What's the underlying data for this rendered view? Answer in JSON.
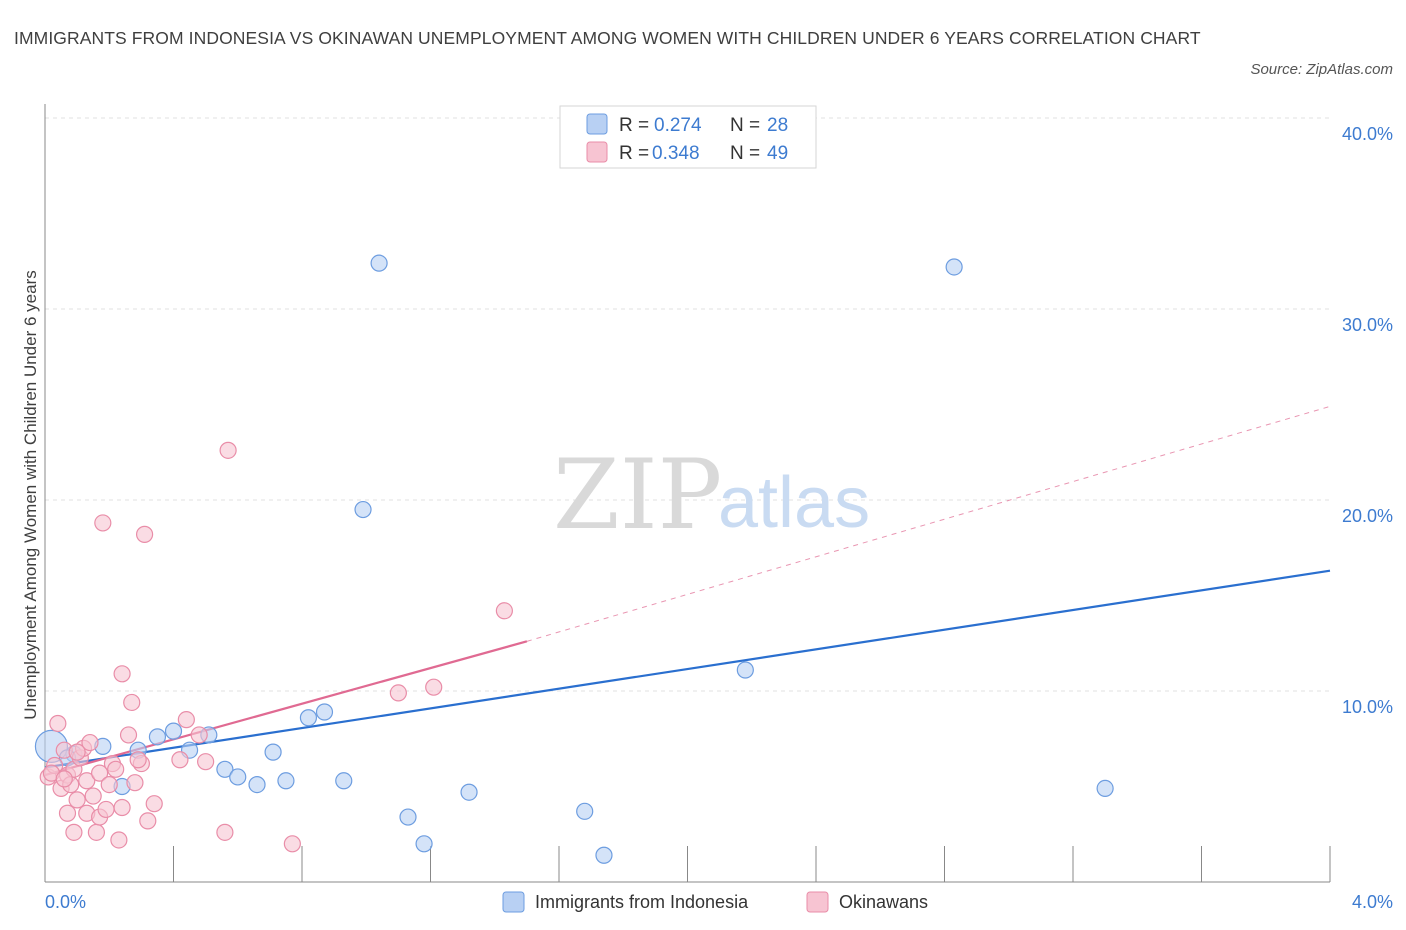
{
  "title": "IMMIGRANTS FROM INDONESIA VS OKINAWAN UNEMPLOYMENT AMONG WOMEN WITH CHILDREN UNDER 6 YEARS CORRELATION CHART",
  "source": "Source: ZipAtlas.com",
  "watermark": {
    "zip": "ZIP",
    "atlas": "atlas"
  },
  "colors": {
    "blue_fill": "#b8d0f3",
    "blue_stroke": "#6d9de0",
    "blue_line": "#2a6fcf",
    "pink_fill": "#f7c4d2",
    "pink_stroke": "#e98da8",
    "pink_line": "#e06a92",
    "grid": "#e2e2e2",
    "tick_text": "#3d7bd0"
  },
  "chart_data": {
    "type": "scatter",
    "title": "IMMIGRANTS FROM INDONESIA VS OKINAWAN UNEMPLOYMENT AMONG WOMEN WITH CHILDREN UNDER 6 YEARS CORRELATION CHART",
    "xlabel": "",
    "ylabel": "Unemployment Among Women with Children Under 6 years",
    "xlim": [
      0,
      4.0
    ],
    "ylim": [
      0,
      40.0
    ],
    "x_tick_labels": [
      "0.0%",
      "4.0%"
    ],
    "y_ticks": [
      10,
      20,
      30,
      40
    ],
    "y_tick_labels": [
      "10.0%",
      "20.0%",
      "30.0%",
      "40.0%"
    ],
    "grid": true,
    "legend_position": "top-center",
    "stats_legend": [
      {
        "r_label": "R =",
        "r_value": "0.274",
        "n_label": "N =",
        "n_value": "28"
      },
      {
        "r_label": "R =",
        "r_value": "0.348",
        "n_label": "N =",
        "n_value": "49"
      }
    ],
    "series": [
      {
        "name": "Immigrants from Indonesia",
        "color": "blue",
        "points": [
          {
            "x": 0.02,
            "y": 7.1,
            "big": true
          },
          {
            "x": 0.09,
            "y": 6.7
          },
          {
            "x": 0.18,
            "y": 7.1
          },
          {
            "x": 0.24,
            "y": 5.0
          },
          {
            "x": 0.29,
            "y": 6.9
          },
          {
            "x": 0.35,
            "y": 7.6
          },
          {
            "x": 0.4,
            "y": 7.9
          },
          {
            "x": 0.45,
            "y": 6.9
          },
          {
            "x": 0.51,
            "y": 7.7
          },
          {
            "x": 0.56,
            "y": 5.9
          },
          {
            "x": 0.6,
            "y": 5.5
          },
          {
            "x": 0.66,
            "y": 5.1
          },
          {
            "x": 0.71,
            "y": 6.8
          },
          {
            "x": 0.75,
            "y": 5.3
          },
          {
            "x": 0.82,
            "y": 8.6
          },
          {
            "x": 0.87,
            "y": 8.9
          },
          {
            "x": 0.93,
            "y": 5.3
          },
          {
            "x": 0.99,
            "y": 19.5
          },
          {
            "x": 1.04,
            "y": 32.4
          },
          {
            "x": 1.13,
            "y": 3.4
          },
          {
            "x": 1.18,
            "y": 2.0
          },
          {
            "x": 1.32,
            "y": 4.7
          },
          {
            "x": 1.68,
            "y": 3.7
          },
          {
            "x": 1.74,
            "y": 1.4
          },
          {
            "x": 2.18,
            "y": 11.1
          },
          {
            "x": 2.83,
            "y": 32.2
          },
          {
            "x": 3.3,
            "y": 4.9
          },
          {
            "x": 0.07,
            "y": 6.5
          }
        ]
      },
      {
        "name": "Okinawans",
        "color": "pink",
        "points": [
          {
            "x": 0.01,
            "y": 5.5
          },
          {
            "x": 0.03,
            "y": 6.1
          },
          {
            "x": 0.04,
            "y": 8.3
          },
          {
            "x": 0.05,
            "y": 4.9
          },
          {
            "x": 0.06,
            "y": 6.9
          },
          {
            "x": 0.07,
            "y": 5.6
          },
          {
            "x": 0.07,
            "y": 3.6
          },
          {
            "x": 0.08,
            "y": 5.1
          },
          {
            "x": 0.09,
            "y": 5.9
          },
          {
            "x": 0.09,
            "y": 2.6
          },
          {
            "x": 0.1,
            "y": 4.3
          },
          {
            "x": 0.11,
            "y": 6.5
          },
          {
            "x": 0.12,
            "y": 7.0
          },
          {
            "x": 0.13,
            "y": 5.3
          },
          {
            "x": 0.13,
            "y": 3.6
          },
          {
            "x": 0.14,
            "y": 7.3
          },
          {
            "x": 0.15,
            "y": 4.5
          },
          {
            "x": 0.16,
            "y": 2.6
          },
          {
            "x": 0.17,
            "y": 5.7
          },
          {
            "x": 0.17,
            "y": 3.4
          },
          {
            "x": 0.18,
            "y": 18.8
          },
          {
            "x": 0.19,
            "y": 3.8
          },
          {
            "x": 0.2,
            "y": 5.1
          },
          {
            "x": 0.21,
            "y": 6.2
          },
          {
            "x": 0.22,
            "y": 5.9
          },
          {
            "x": 0.23,
            "y": 2.2
          },
          {
            "x": 0.24,
            "y": 3.9
          },
          {
            "x": 0.24,
            "y": 10.9
          },
          {
            "x": 0.26,
            "y": 7.7
          },
          {
            "x": 0.27,
            "y": 9.4
          },
          {
            "x": 0.28,
            "y": 5.2
          },
          {
            "x": 0.3,
            "y": 6.2
          },
          {
            "x": 0.31,
            "y": 18.2
          },
          {
            "x": 0.32,
            "y": 3.2
          },
          {
            "x": 0.34,
            "y": 4.1
          },
          {
            "x": 0.42,
            "y": 6.4
          },
          {
            "x": 0.44,
            "y": 8.5
          },
          {
            "x": 0.48,
            "y": 7.7
          },
          {
            "x": 0.5,
            "y": 6.3
          },
          {
            "x": 0.56,
            "y": 2.6
          },
          {
            "x": 0.57,
            "y": 22.6
          },
          {
            "x": 0.77,
            "y": 2.0
          },
          {
            "x": 1.1,
            "y": 9.9
          },
          {
            "x": 1.21,
            "y": 10.2
          },
          {
            "x": 1.43,
            "y": 14.2
          },
          {
            "x": 0.02,
            "y": 5.7
          },
          {
            "x": 0.06,
            "y": 5.4
          },
          {
            "x": 0.1,
            "y": 6.8
          },
          {
            "x": 0.29,
            "y": 6.4
          }
        ]
      }
    ],
    "trendlines": [
      {
        "series": "Immigrants from Indonesia",
        "x0": 0.0,
        "y0": 6.0,
        "x1": 4.0,
        "y1": 16.3,
        "dashed_from": null
      },
      {
        "series": "Okinawans",
        "x0": 0.0,
        "y0": 5.6,
        "x1": 1.5,
        "y1": 12.6,
        "dash_x1": 4.0,
        "dash_y1": 24.9
      }
    ]
  }
}
